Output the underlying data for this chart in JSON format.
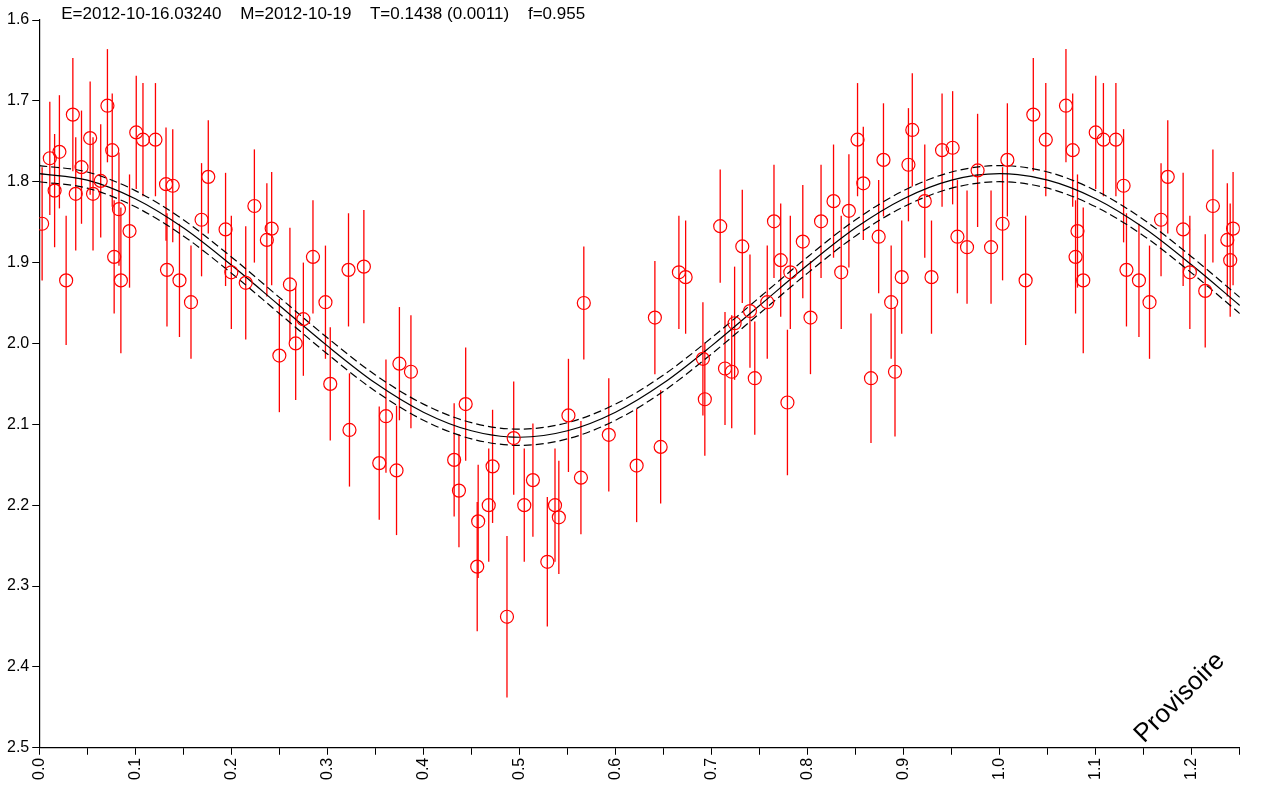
{
  "chart_data": {
    "type": "scatter",
    "title": "E=2012-10-16.03240    M=2012-10-19    T=0.1438 (0.0011)    f=0.955",
    "annotations": [
      "Provisoire"
    ],
    "xlim": [
      0,
      1.25
    ],
    "xticks": [
      {
        "value": 0,
        "label": "0.0"
      },
      {
        "value": 0.05,
        "label": null
      },
      0.1,
      {
        "value": 0.15,
        "label": null
      },
      0.2,
      {
        "value": 0.25,
        "label": null
      },
      0.3,
      {
        "value": 0.35,
        "label": null
      },
      0.4,
      {
        "value": 0.45,
        "label": null
      },
      0.5,
      {
        "value": 0.55,
        "label": null
      },
      0.6,
      {
        "value": 0.65,
        "label": null
      },
      0.7,
      {
        "value": 0.75,
        "label": null
      },
      0.8,
      {
        "value": 0.85,
        "label": null
      },
      0.9,
      {
        "value": 0.95,
        "label": null
      },
      {
        "value": 1,
        "label": "1.0"
      },
      {
        "value": 1.05,
        "label": null
      },
      1.1,
      {
        "value": 1.15,
        "label": null
      },
      1.2,
      {
        "value": 1.25,
        "label": null
      }
    ],
    "ylim": [
      2.5,
      1.6
    ],
    "yticks": [
      1.6,
      1.7,
      1.8,
      1.9,
      {
        "value": 2,
        "label": "2.0"
      },
      2.1,
      2.2,
      2.3,
      2.4,
      2.5
    ],
    "grid": false,
    "legend": false,
    "marker": "circle",
    "series": [
      {
        "color": "#ff0000",
        "x": [
          0.003,
          0.011,
          0.016,
          0.021,
          0.028,
          0.035,
          0.038,
          0.044,
          0.053,
          0.056,
          0.064,
          0.071,
          0.076,
          0.078,
          0.083,
          0.085,
          0.094,
          0.101,
          0.108,
          0.121,
          0.132,
          0.139,
          0.133,
          0.146,
          0.158,
          0.169,
          0.176,
          0.194,
          0.2,
          0.215,
          0.224,
          0.237,
          0.242,
          0.25,
          0.261,
          0.267,
          0.275,
          0.285,
          0.298,
          0.303,
          0.322,
          0.323,
          0.338,
          0.354,
          0.361,
          0.372,
          0.375,
          0.387,
          0.432,
          0.437,
          0.444,
          0.456,
          0.457,
          0.468,
          0.472,
          0.487,
          0.494,
          0.505,
          0.514,
          0.529,
          0.537,
          0.541,
          0.551,
          0.564,
          0.567,
          0.593,
          0.622,
          0.641,
          0.647,
          0.666,
          0.673,
          0.691,
          0.693,
          0.709,
          0.714,
          0.721,
          0.724,
          0.732,
          0.74,
          0.745,
          0.758,
          0.765,
          0.772,
          0.779,
          0.782,
          0.795,
          0.803,
          0.814,
          0.827,
          0.835,
          0.843,
          0.852,
          0.858,
          0.866,
          0.874,
          0.879,
          0.887,
          0.891,
          0.898,
          0.905,
          0.909,
          0.922,
          0.929,
          0.94,
          0.951,
          0.956,
          0.966,
          0.977,
          0.991,
          1.003,
          1.008,
          1.027,
          1.035,
          1.048,
          1.069,
          1.076,
          1.079,
          1.081,
          1.087,
          1.1,
          1.108,
          1.121,
          1.129,
          1.132,
          1.145,
          1.156,
          1.168,
          1.175,
          1.191,
          1.198,
          1.214,
          1.222,
          1.237,
          1.24,
          1.243
        ],
        "values": [
          1.852,
          1.771,
          1.811,
          1.763,
          1.922,
          1.717,
          1.815,
          1.782,
          1.746,
          1.815,
          1.799,
          1.706,
          1.761,
          1.893,
          1.834,
          1.922,
          1.861,
          1.739,
          1.748,
          1.748,
          1.803,
          1.805,
          1.909,
          1.922,
          1.949,
          1.847,
          1.794,
          1.859,
          1.912,
          1.925,
          1.83,
          1.872,
          1.858,
          2.015,
          1.927,
          2.0,
          1.97,
          1.893,
          1.949,
          2.05,
          1.909,
          2.107,
          1.905,
          2.148,
          2.09,
          2.157,
          2.025,
          2.035,
          2.144,
          2.182,
          2.075,
          2.276,
          2.22,
          2.2,
          2.152,
          2.338,
          2.117,
          2.2,
          2.169,
          2.27,
          2.2,
          2.215,
          2.089,
          2.166,
          1.95,
          2.113,
          2.151,
          1.968,
          2.128,
          1.912,
          1.918,
          2.019,
          2.069,
          1.855,
          2.031,
          2.035,
          1.975,
          1.88,
          1.96,
          2.043,
          1.949,
          1.849,
          1.897,
          2.073,
          1.912,
          1.874,
          1.968,
          1.849,
          1.824,
          1.912,
          1.836,
          1.748,
          1.802,
          2.043,
          1.868,
          1.773,
          1.949,
          2.035,
          1.918,
          1.779,
          1.736,
          1.824,
          1.918,
          1.761,
          1.758,
          1.868,
          1.881,
          1.786,
          1.881,
          1.852,
          1.773,
          1.922,
          1.717,
          1.748,
          1.706,
          1.761,
          1.893,
          1.861,
          1.922,
          1.739,
          1.748,
          1.748,
          1.805,
          1.909,
          1.922,
          1.949,
          1.847,
          1.794,
          1.859,
          1.912,
          1.935,
          1.83,
          1.872,
          1.897,
          1.858
        ],
        "errors": [
          0.07,
          0.07,
          0.07,
          0.07,
          0.08,
          0.07,
          0.07,
          0.07,
          0.07,
          0.07,
          0.07,
          0.07,
          0.07,
          0.07,
          0.07,
          0.09,
          0.07,
          0.07,
          0.07,
          0.07,
          0.07,
          0.07,
          0.07,
          0.07,
          0.07,
          0.07,
          0.07,
          0.07,
          0.07,
          0.07,
          0.07,
          0.07,
          0.07,
          0.07,
          0.07,
          0.07,
          0.07,
          0.07,
          0.07,
          0.07,
          0.07,
          0.07,
          0.07,
          0.07,
          0.07,
          0.08,
          0.07,
          0.07,
          0.07,
          0.07,
          0.07,
          0.08,
          0.07,
          0.07,
          0.07,
          0.1,
          0.07,
          0.07,
          0.07,
          0.08,
          0.07,
          0.07,
          0.07,
          0.07,
          0.07,
          0.07,
          0.07,
          0.07,
          0.07,
          0.07,
          0.07,
          0.07,
          0.07,
          0.07,
          0.07,
          0.07,
          0.07,
          0.07,
          0.07,
          0.07,
          0.07,
          0.07,
          0.07,
          0.09,
          0.07,
          0.07,
          0.07,
          0.07,
          0.07,
          0.07,
          0.07,
          0.07,
          0.07,
          0.08,
          0.07,
          0.07,
          0.07,
          0.08,
          0.07,
          0.07,
          0.07,
          0.07,
          0.07,
          0.07,
          0.07,
          0.07,
          0.07,
          0.07,
          0.07,
          0.07,
          0.07,
          0.08,
          0.07,
          0.07,
          0.07,
          0.07,
          0.07,
          0.07,
          0.09,
          0.07,
          0.07,
          0.07,
          0.07,
          0.07,
          0.07,
          0.07,
          0.07,
          0.07,
          0.07,
          0.07,
          0.07,
          0.07,
          0.07,
          0.07,
          0.07
        ]
      },
      {
        "type": "line",
        "color": "#000000",
        "marker": "none",
        "line_style": "solid",
        "x": [
          0,
          0.05,
          0.1,
          0.15,
          0.2,
          0.25,
          0.3,
          0.35,
          0.4,
          0.45,
          0.5,
          0.55,
          0.6,
          0.65,
          0.7,
          0.75,
          0.8,
          0.85,
          0.9,
          0.95,
          1,
          1.05,
          1.1,
          1.15,
          1.2,
          1.25
        ],
        "values": [
          1.79,
          1.798,
          1.821,
          1.857,
          1.903,
          1.953,
          2.003,
          2.049,
          2.085,
          2.108,
          2.116,
          2.108,
          2.085,
          2.049,
          2.003,
          1.953,
          1.903,
          1.857,
          1.821,
          1.798,
          1.79,
          1.798,
          1.821,
          1.857,
          1.903,
          1.953
        ]
      },
      {
        "type": "line",
        "color": "#000000",
        "marker": "none",
        "line_style": "dashed",
        "x": [
          0,
          0.05,
          0.1,
          0.15,
          0.2,
          0.25,
          0.3,
          0.35,
          0.4,
          0.45,
          0.5,
          0.55,
          0.6,
          0.65,
          0.7,
          0.75,
          0.8,
          0.85,
          0.9,
          0.95,
          1,
          1.05,
          1.1,
          1.15,
          1.2,
          1.25
        ],
        "values": [
          1.78,
          1.788,
          1.811,
          1.847,
          1.893,
          1.943,
          1.993,
          2.039,
          2.075,
          2.098,
          2.106,
          2.098,
          2.075,
          2.039,
          1.993,
          1.943,
          1.893,
          1.847,
          1.811,
          1.788,
          1.78,
          1.788,
          1.811,
          1.847,
          1.893,
          1.943
        ]
      },
      {
        "type": "line",
        "color": "#000000",
        "marker": "none",
        "line_style": "dashed",
        "x": [
          0,
          0.05,
          0.1,
          0.15,
          0.2,
          0.25,
          0.3,
          0.35,
          0.4,
          0.45,
          0.5,
          0.55,
          0.6,
          0.65,
          0.7,
          0.75,
          0.8,
          0.85,
          0.9,
          0.95,
          1,
          1.05,
          1.1,
          1.15,
          1.2,
          1.25
        ],
        "values": [
          1.8,
          1.808,
          1.831,
          1.867,
          1.913,
          1.963,
          2.013,
          2.059,
          2.095,
          2.118,
          2.126,
          2.118,
          2.095,
          2.059,
          2.013,
          1.963,
          1.913,
          1.867,
          1.831,
          1.808,
          1.8,
          1.808,
          1.831,
          1.867,
          1.913,
          1.963
        ]
      }
    ]
  }
}
